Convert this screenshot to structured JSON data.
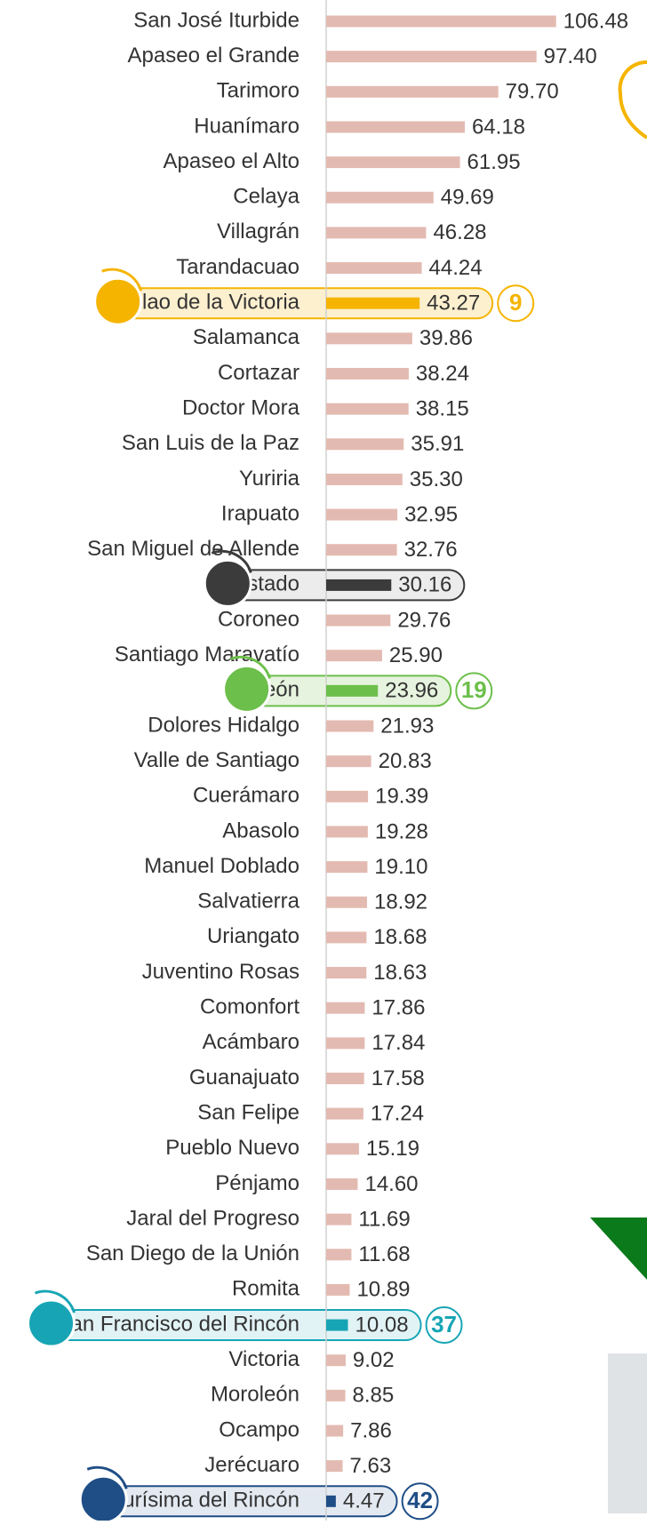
{
  "chart_data": {
    "type": "bar",
    "orientation": "horizontal",
    "color": "#e3bab1",
    "categories": [
      "San José Iturbide",
      "Apaseo el Grande",
      "Tarimoro",
      "Huanímaro",
      "Apaseo el Alto",
      "Celaya",
      "Villagrán",
      "Tarandacuao",
      "Silao de la Victoria",
      "Salamanca",
      "Cortazar",
      "Doctor Mora",
      "San Luis de la Paz",
      "Yuriria",
      "Irapuato",
      "San Miguel de Allende",
      "Estado",
      "Coroneo",
      "Santiago Maravatío",
      "León",
      "Dolores Hidalgo",
      "Valle de Santiago",
      "Cuerámaro",
      "Abasolo",
      "Manuel Doblado",
      "Salvatierra",
      "Uriangato",
      "Juventino Rosas",
      "Comonfort",
      "Acámbaro",
      "Guanajuato",
      "San Felipe",
      "Pueblo Nuevo",
      "Pénjamo",
      "Jaral del Progreso",
      "San Diego de la Unión",
      "Romita",
      "San Francisco del Rincón",
      "Victoria",
      "Moroleón",
      "Ocampo",
      "Jerécuaro",
      "Purísima del Rincón"
    ],
    "values": [
      106.48,
      97.4,
      79.7,
      64.18,
      61.95,
      49.69,
      46.28,
      44.24,
      43.27,
      39.86,
      38.24,
      38.15,
      35.91,
      35.3,
      32.95,
      32.76,
      30.16,
      29.76,
      25.9,
      23.96,
      21.93,
      20.83,
      19.39,
      19.28,
      19.1,
      18.92,
      18.68,
      18.63,
      17.86,
      17.84,
      17.58,
      17.24,
      15.19,
      14.6,
      11.69,
      11.68,
      10.89,
      10.08,
      9.02,
      8.85,
      7.86,
      7.63,
      4.47
    ],
    "value_labels": [
      "106.48",
      "97.40",
      "79.70",
      "64.18",
      "61.95",
      "49.69",
      "46.28",
      "44.24",
      "43.27",
      "39.86",
      "38.24",
      "38.15",
      "35.91",
      "35.30",
      "32.95",
      "32.76",
      "30.16",
      "29.76",
      "25.90",
      "23.96",
      "21.93",
      "20.83",
      "19.39",
      "19.28",
      "19.10",
      "18.92",
      "18.68",
      "18.63",
      "17.86",
      "17.84",
      "17.58",
      "17.24",
      "15.19",
      "14.60",
      "11.69",
      "11.68",
      "10.89",
      "10.08",
      "9.02",
      "8.85",
      "7.86",
      "7.63",
      "4.47"
    ],
    "xlim": [
      0,
      110
    ],
    "highlights": [
      {
        "name": "Silao de la Victoria",
        "rank": 9,
        "color": "#f5b400",
        "fill": "#fdf0cf"
      },
      {
        "name": "Estado",
        "color": "#3b3b3b",
        "fill": "#ececec"
      },
      {
        "name": "León",
        "rank": 19,
        "color": "#6cbf4a",
        "fill": "#e6f3de"
      },
      {
        "name": "San Francisco del Rincón",
        "rank": 37,
        "color": "#17a5b5",
        "fill": "#e2f3f5"
      },
      {
        "name": "Purísima del Rincón",
        "rank": 42,
        "color": "#1f4e86",
        "fill": "#e3e9f1"
      }
    ]
  }
}
